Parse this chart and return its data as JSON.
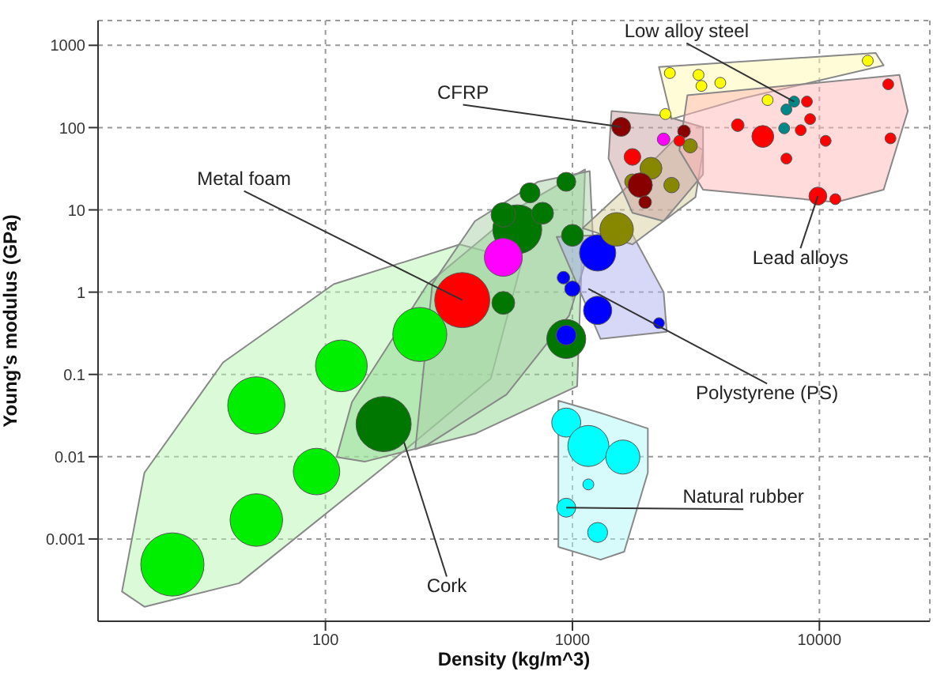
{
  "chart_data": {
    "type": "bubble",
    "xlabel": "Density (kg/m^3)",
    "ylabel": "Young's modulus (GPa)",
    "log": "xy",
    "grid": true,
    "xlim": [
      12,
      28000
    ],
    "ylim": [
      0.0001,
      2000
    ],
    "xticks": [
      100,
      1000,
      10000
    ],
    "yticks": [
      0.001,
      0.01,
      0.1,
      1,
      10,
      100,
      1000
    ],
    "series": [
      {
        "type": "area",
        "color": "#b8f5b0",
        "x": [
          15,
          18.5,
          38.5,
          108,
          350,
          625,
          467,
          194,
          44.7,
          18.5
        ],
        "values": [
          0.00023,
          0.0064,
          0.14,
          1.25,
          3.8,
          2.4,
          0.089,
          0.0099,
          0.00029,
          0.00015
        ]
      },
      {
        "type": "area",
        "color": "#8fd890",
        "x": [
          111,
          128,
          259,
          625,
          1125,
          1045,
          403,
          144
        ],
        "values": [
          0.0099,
          0.046,
          1.25,
          11.3,
          31,
          0.072,
          0.019,
          0.0087
        ]
      },
      {
        "type": "area",
        "color": "#a8cfa8",
        "x": [
          231,
          271,
          403,
          724,
          1175,
          1210,
          970,
          541,
          259
        ],
        "values": [
          0.0123,
          1.26,
          7.3,
          21.9,
          29.6,
          4.7,
          0.52,
          0.057,
          0.014
        ]
      },
      {
        "type": "area",
        "color": "#b0b0f0",
        "x": [
          863,
          1746,
          2340,
          2410,
          1300
        ],
        "values": [
          4.7,
          5.1,
          1,
          0.33,
          0.27
        ]
      },
      {
        "type": "area",
        "color": "#b0f7f7",
        "x": [
          877,
          1300,
          2020,
          2020,
          1620,
          1300,
          877
        ],
        "values": [
          0.048,
          0.034,
          0.022,
          0.0064,
          0.0007,
          0.00056,
          0.0008
        ]
      },
      {
        "type": "area",
        "color": "#d8d0a0",
        "x": [
          1100,
          1620,
          2710,
          3380,
          3150,
          1750
        ],
        "values": [
          6,
          17.6,
          82,
          53,
          14.3,
          3.8
        ]
      },
      {
        "type": "area",
        "color": "#c8a0a0",
        "x": [
          1440,
          2340,
          3380,
          3380,
          2340,
          1750,
          1400
        ],
        "values": [
          159,
          140,
          101,
          27,
          7.3,
          9.2,
          42
        ]
      },
      {
        "type": "area",
        "color": "#fff9b0",
        "x": [
          2240,
          16900,
          18200,
          4880,
          2520
        ],
        "values": [
          545,
          809,
          570,
          226,
          127
        ]
      },
      {
        "type": "area",
        "color": "#ffb8b8",
        "x": [
          2920,
          21100,
          22800,
          18200,
          11700,
          3380,
          2710
        ],
        "values": [
          247,
          437,
          159,
          17.6,
          12.4,
          17.6,
          53
        ]
      },
      {
        "color": "#00ee00",
        "x": [
          24,
          52.5,
          52.5,
          92,
          116,
          241
        ],
        "values": [
          0.00049,
          0.0017,
          0.042,
          0.0066,
          0.127,
          0.306
        ],
        "sizes": [
          1,
          0.69,
          0.82,
          0.54,
          0.67,
          0.73
        ]
      },
      {
        "color": "#007700",
        "x": [
          172,
          525,
          944,
          598,
          525,
          1000,
          757,
          673,
          944
        ],
        "values": [
          0.0249,
          0.74,
          0.27,
          5.8,
          8.7,
          4.9,
          9.1,
          16.1,
          21.9
        ],
        "sizes": [
          0.76,
          0.13,
          0.38,
          0.6,
          0.15,
          0.12,
          0.12,
          0.1,
          0.09
        ]
      },
      {
        "color": "#ff00ff",
        "x": [
          525,
          2340
        ],
        "values": [
          2.65,
          72
        ],
        "sizes": [
          0.36,
          0.04
        ]
      },
      {
        "color": "#ff0000",
        "x": [
          358
        ],
        "values": [
          0.8
        ],
        "sizes": [
          0.76
        ]
      },
      {
        "color": "#0000ff",
        "x": [
          1265,
          1000,
          944,
          1265,
          2240,
          920
        ],
        "values": [
          3,
          1.1,
          0.3,
          0.6,
          0.42,
          1.5
        ],
        "sizes": [
          0.33,
          0.06,
          0.1,
          0.2,
          0.03,
          0.04
        ]
      },
      {
        "color": "#00ffff",
        "x": [
          944,
          1160,
          1600,
          944,
          1265,
          1160
        ],
        "values": [
          0.026,
          0.0135,
          0.0099,
          0.0024,
          0.0012,
          0.0046
        ],
        "sizes": [
          0.21,
          0.42,
          0.29,
          0.09,
          0.1,
          0.03
        ]
      },
      {
        "color": "#888800",
        "x": [
          1510,
          2080,
          2520,
          3000,
          1750
        ],
        "values": [
          5.8,
          32,
          20,
          60,
          22
        ],
        "sizes": [
          0.28,
          0.12,
          0.06,
          0.05,
          0.06
        ]
      },
      {
        "color": "#880000",
        "x": [
          1575,
          1880,
          1970,
          2830
        ],
        "values": [
          102,
          20,
          12.4,
          90
        ],
        "sizes": [
          0.09,
          0.15,
          0.04,
          0.04
        ]
      },
      {
        "color": "#ff0000",
        "x": [
          1750,
          2710,
          4670,
          5900,
          7350,
          8400,
          9170,
          8900,
          10600,
          19000,
          19400,
          9860,
          11600
        ],
        "values": [
          44,
          69,
          107,
          78,
          42,
          93,
          127,
          207,
          69,
          336,
          74,
          14.7,
          13.5
        ],
        "sizes": [
          0.07,
          0.03,
          0.04,
          0.12,
          0.03,
          0.03,
          0.03,
          0.03,
          0.03,
          0.03,
          0.03,
          0.08,
          0.03
        ]
      },
      {
        "color": "#ffff00",
        "x": [
          2480,
          3240,
          3330,
          3970,
          6170,
          2380,
          15700
        ],
        "values": [
          460,
          437,
          321,
          350,
          216,
          146,
          650
        ],
        "sizes": [
          0.03,
          0.03,
          0.03,
          0.03,
          0.03,
          0.03,
          0.03
        ]
      },
      {
        "color": "#008888",
        "x": [
          7900,
          7350,
          7200
        ],
        "values": [
          207,
          166,
          98
        ],
        "sizes": [
          0.03,
          0.03,
          0.03
        ]
      }
    ],
    "annotations": [
      {
        "text": "Low alloy steel",
        "x": 7900,
        "y": 207
      },
      {
        "text": "CFRP",
        "x": 1575,
        "y": 102
      },
      {
        "text": "Metal foam",
        "x": 358,
        "y": 0.8
      },
      {
        "text": "Lead alloys",
        "x": 9860,
        "y": 14.7
      },
      {
        "text": "Polystyrene (PS)",
        "x": 1160,
        "y": 1.1
      },
      {
        "text": "Natural rubber",
        "x": 944,
        "y": 0.0024
      },
      {
        "text": "Cork",
        "x": 208,
        "y": 0.015
      }
    ]
  }
}
